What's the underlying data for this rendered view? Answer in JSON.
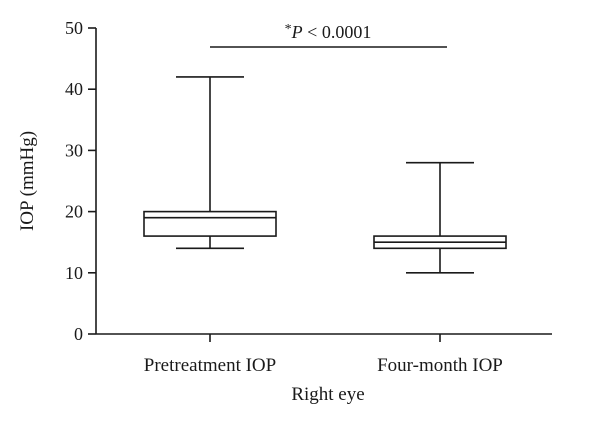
{
  "chart_data": {
    "type": "boxplot",
    "title": "",
    "xlabel": "Right eye",
    "ylabel": "IOP (mmHg)",
    "ylim": [
      0,
      50
    ],
    "yticks": [
      0,
      10,
      20,
      30,
      40,
      50
    ],
    "grid": false,
    "categories": [
      "Pretreatment IOP",
      "Four-month IOP"
    ],
    "boxes": [
      {
        "category": "Pretreatment IOP",
        "min": 14,
        "q1": 16,
        "median": 19,
        "q3": 20,
        "max": 42
      },
      {
        "category": "Four-month IOP",
        "min": 10,
        "q1": 14,
        "median": 15,
        "q3": 16,
        "max": 28
      }
    ],
    "annotation": {
      "star": "*",
      "p_symbol": "P",
      "text": " < 0.0001"
    }
  }
}
